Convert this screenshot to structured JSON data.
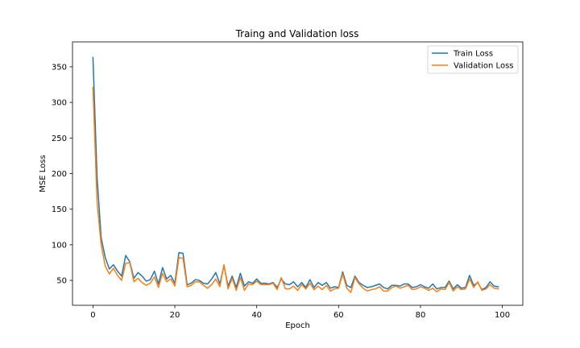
{
  "chart_data": {
    "type": "line",
    "title": "Traing and Validation loss",
    "xlabel": "Epoch",
    "ylabel": "MSE Loss",
    "xlim": [
      -5,
      105
    ],
    "ylim": [
      15,
      385
    ],
    "xticks": [
      0,
      20,
      40,
      60,
      80,
      100
    ],
    "yticks": [
      50,
      100,
      150,
      200,
      250,
      300,
      350
    ],
    "grid": false,
    "legend_position": "top-right",
    "series": [
      {
        "name": "Train Loss",
        "color": "#1f77b4",
        "x": [
          0,
          1,
          2,
          3,
          4,
          5,
          6,
          7,
          8,
          9,
          10,
          11,
          12,
          13,
          14,
          15,
          16,
          17,
          18,
          19,
          20,
          21,
          22,
          23,
          24,
          25,
          26,
          27,
          28,
          29,
          30,
          31,
          32,
          33,
          34,
          35,
          36,
          37,
          38,
          39,
          40,
          41,
          42,
          43,
          44,
          45,
          46,
          47,
          48,
          49,
          50,
          51,
          52,
          53,
          54,
          55,
          56,
          57,
          58,
          59,
          60,
          61,
          62,
          63,
          64,
          65,
          66,
          67,
          68,
          69,
          70,
          71,
          72,
          73,
          74,
          75,
          76,
          77,
          78,
          79,
          80,
          81,
          82,
          83,
          84,
          85,
          86,
          87,
          88,
          89,
          90,
          91,
          92,
          93,
          94,
          95,
          96,
          97,
          98,
          99
        ],
        "y": [
          363,
          195,
          110,
          82,
          66,
          72,
          63,
          56,
          85,
          76,
          53,
          61,
          56,
          49,
          51,
          63,
          45,
          68,
          52,
          57,
          46,
          89,
          88,
          44,
          46,
          51,
          50,
          46,
          45,
          52,
          61,
          45,
          71,
          42,
          56,
          40,
          60,
          42,
          48,
          46,
          52,
          46,
          46,
          45,
          47,
          40,
          52,
          45,
          44,
          48,
          41,
          47,
          40,
          51,
          40,
          47,
          43,
          47,
          39,
          41,
          40,
          62,
          43,
          40,
          56,
          47,
          43,
          40,
          41,
          43,
          45,
          40,
          38,
          43,
          43,
          42,
          45,
          45,
          40,
          41,
          44,
          41,
          39,
          45,
          38,
          40,
          40,
          49,
          38,
          44,
          39,
          40,
          57,
          43,
          47,
          37,
          40,
          48,
          42,
          41
        ]
      },
      {
        "name": "Validation Loss",
        "color": "#ff7f0e",
        "x": [
          0,
          1,
          2,
          3,
          4,
          5,
          6,
          7,
          8,
          9,
          10,
          11,
          12,
          13,
          14,
          15,
          16,
          17,
          18,
          19,
          20,
          21,
          22,
          23,
          24,
          25,
          26,
          27,
          28,
          29,
          30,
          31,
          32,
          33,
          34,
          35,
          36,
          37,
          38,
          39,
          40,
          41,
          42,
          43,
          44,
          45,
          46,
          47,
          48,
          49,
          50,
          51,
          52,
          53,
          54,
          55,
          56,
          57,
          58,
          59,
          60,
          61,
          62,
          63,
          64,
          65,
          66,
          67,
          68,
          69,
          70,
          71,
          72,
          73,
          74,
          75,
          76,
          77,
          78,
          79,
          80,
          81,
          82,
          83,
          84,
          85,
          86,
          87,
          88,
          89,
          90,
          91,
          92,
          93,
          94,
          95,
          96,
          97,
          98,
          99
        ],
        "y": [
          321,
          160,
          100,
          70,
          59,
          67,
          57,
          50,
          74,
          75,
          48,
          53,
          47,
          43,
          46,
          55,
          40,
          60,
          48,
          52,
          42,
          82,
          81,
          41,
          43,
          48,
          48,
          43,
          39,
          44,
          52,
          41,
          72,
          38,
          53,
          36,
          54,
          36,
          45,
          44,
          49,
          44,
          44,
          44,
          46,
          37,
          54,
          38,
          38,
          42,
          36,
          44,
          38,
          46,
          37,
          42,
          37,
          43,
          35,
          38,
          39,
          59,
          39,
          33,
          54,
          45,
          39,
          35,
          37,
          38,
          41,
          35,
          35,
          40,
          42,
          39,
          41,
          43,
          37,
          38,
          41,
          39,
          36,
          39,
          34,
          38,
          37,
          47,
          35,
          41,
          37,
          38,
          52,
          40,
          48,
          36,
          38,
          44,
          39,
          38
        ]
      }
    ]
  }
}
